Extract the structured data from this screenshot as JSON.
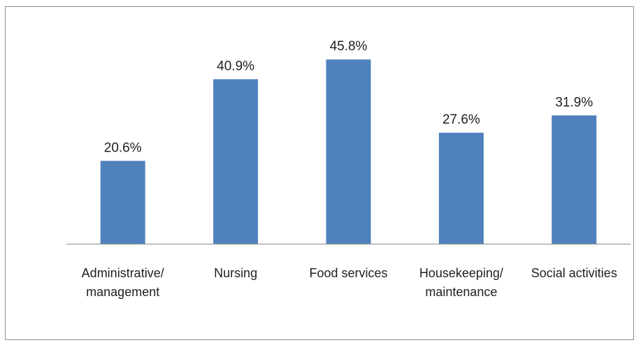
{
  "chart_data": {
    "type": "bar",
    "categories": [
      [
        "Administrative/",
        "management"
      ],
      [
        "Nursing"
      ],
      [
        "Food services"
      ],
      [
        "Housekeeping/",
        "maintenance"
      ],
      [
        "Social activities"
      ]
    ],
    "values": [
      20.6,
      40.9,
      45.8,
      27.6,
      31.9
    ],
    "data_labels": [
      "20.6%",
      "40.9%",
      "45.8%",
      "27.6%",
      "31.9%"
    ],
    "title": "",
    "xlabel": "",
    "ylabel": "",
    "ylim": [
      0,
      50
    ],
    "grid": false,
    "legend": "none",
    "colors": {
      "bar": "#4f81bd",
      "axis": "#8c8c8c",
      "border": "#8a8a8a",
      "text": "#1f1f1f"
    }
  }
}
